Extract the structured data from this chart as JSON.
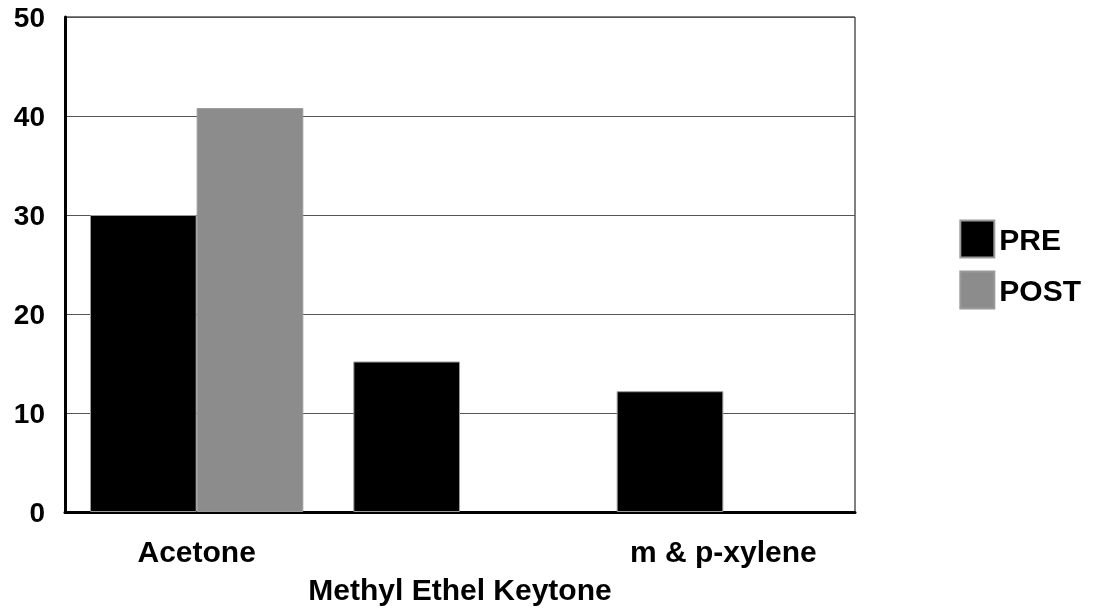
{
  "chart_data": {
    "type": "bar",
    "categories": [
      "Acetone",
      "Methyl Ethel Keytone",
      "m & p-xylene"
    ],
    "series": [
      {
        "name": "PRE",
        "color": "#000000",
        "values": [
          30,
          15.2,
          12.2
        ]
      },
      {
        "name": "POST",
        "color": "#8c8c8c",
        "values": [
          40.8,
          null,
          null
        ]
      }
    ],
    "ylim": [
      0,
      50
    ],
    "yticks": [
      0,
      10,
      20,
      30,
      40,
      50
    ],
    "grid": "y",
    "legend": "right"
  }
}
